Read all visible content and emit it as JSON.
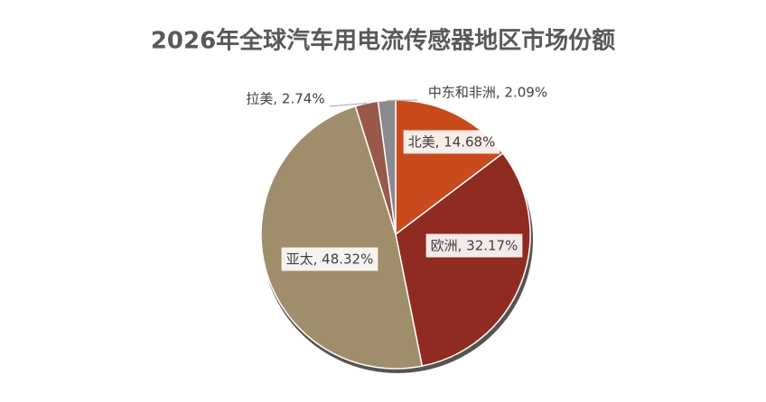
{
  "chart_data": {
    "type": "pie",
    "title": "2026年全球汽车用电流传感器地区市场份额",
    "categories": [
      "北美",
      "欧洲",
      "亚太",
      "拉美",
      "中东和非洲"
    ],
    "values": [
      14.68,
      32.17,
      48.32,
      2.74,
      2.09
    ],
    "value_labels": [
      "北美, 14.68%",
      "欧洲, 32.17%",
      "亚太, 48.32%",
      "拉美, 2.74%",
      "中东和非洲, 2.09%"
    ],
    "colors": [
      "#c94a1c",
      "#8f2b21",
      "#a08d6c",
      "#98594a",
      "#898a8f"
    ]
  }
}
